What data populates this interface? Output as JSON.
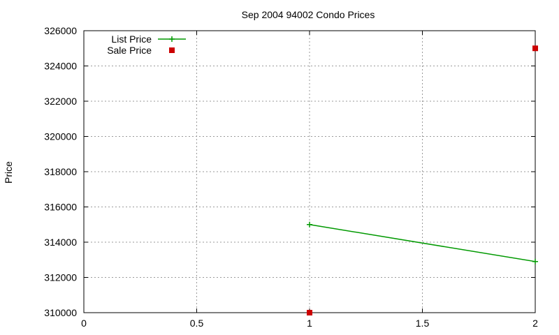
{
  "chart_data": {
    "type": "line",
    "title": "Sep 2004 94002 Condo Prices",
    "xlabel": "",
    "ylabel": "Price",
    "xlim": [
      0,
      2
    ],
    "ylim": [
      310000,
      326000
    ],
    "x_ticks": [
      "0",
      "0.5",
      "1",
      "1.5",
      "2"
    ],
    "y_ticks": [
      "310000",
      "312000",
      "314000",
      "316000",
      "318000",
      "320000",
      "322000",
      "324000",
      "326000"
    ],
    "grid": true,
    "legend_position": "top-left",
    "series": [
      {
        "name": "List Price",
        "style": "lines+points",
        "color": "#009900",
        "points": [
          {
            "x": 1,
            "y": 315000
          },
          {
            "x": 2,
            "y": 312900
          }
        ]
      },
      {
        "name": "Sale Price",
        "style": "points",
        "color": "#cc0000",
        "points": [
          {
            "x": 1,
            "y": 310000
          },
          {
            "x": 2,
            "y": 325000
          }
        ]
      }
    ]
  }
}
